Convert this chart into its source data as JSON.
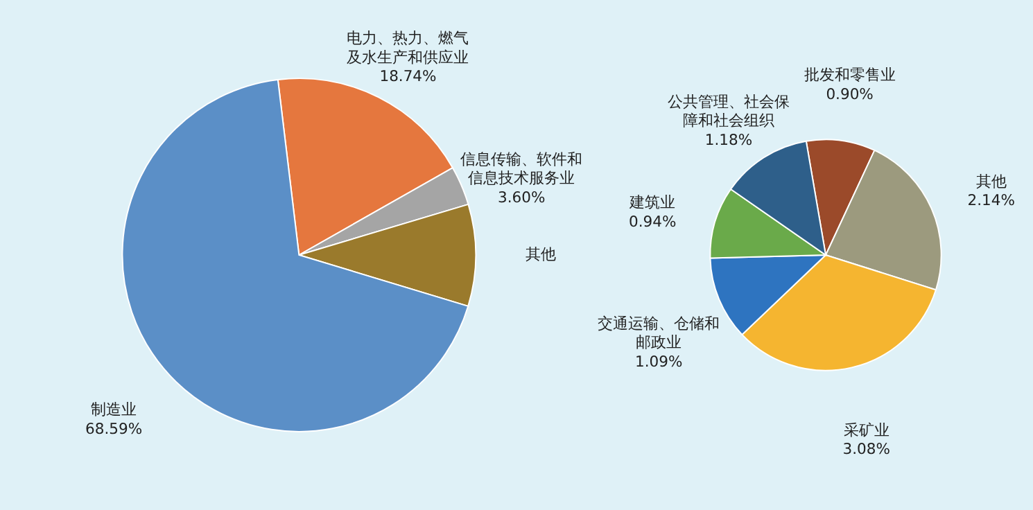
{
  "chart_data": [
    {
      "type": "pie",
      "categories": [
        "电力、热力、燃气及水生产和供应业",
        "信息传输、软件和信息技术服务业",
        "其他",
        "制造业"
      ],
      "values": [
        18.74,
        3.6,
        9.33,
        68.59
      ],
      "colors": [
        "#e5773e",
        "#a5a5a5",
        "#9a7a2c",
        "#5b8fc7"
      ],
      "value_labels": [
        "18.74%",
        "3.60%",
        null,
        "68.59%"
      ],
      "legend": false
    },
    {
      "type": "pie",
      "categories": [
        "批发和零售业",
        "其他",
        "采矿业",
        "交通运输、仓储和邮政业",
        "建筑业",
        "公共管理、社会保障和社会组织"
      ],
      "values": [
        0.9,
        2.14,
        3.08,
        1.09,
        0.94,
        1.18
      ],
      "colors": [
        "#9b4a2a",
        "#9c9a7e",
        "#f5b530",
        "#2e74c0",
        "#6aaa4a",
        "#2e5f8a"
      ],
      "value_labels": [
        "0.90%",
        "2.14%",
        "3.08%",
        "1.09%",
        "0.94%",
        "1.18%"
      ],
      "legend": false
    }
  ]
}
